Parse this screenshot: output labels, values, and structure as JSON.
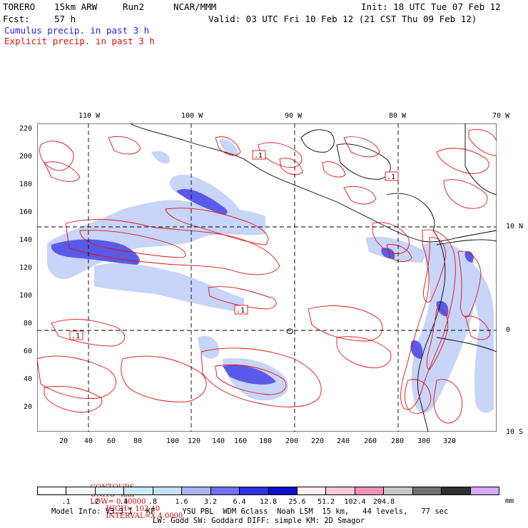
{
  "header": {
    "model_name": "TORERO",
    "resolution": "15km ARW",
    "run": "Run2",
    "org": "NCAR/MMM",
    "init": "Init: 18 UTC Tue 07 Feb 12",
    "fcst_label": "Fcst:",
    "fcst_value": "57 h",
    "valid": "Valid: 03 UTC Fri 10 Feb 12 (21 CST Thu 09 Feb 12)"
  },
  "legend": {
    "cumulus": "Cumulus precip. in past 3 h",
    "explicit": "Explicit precip. in past 3 h"
  },
  "map": {
    "top_lon_labels": [
      "110 W",
      "100 W",
      "90 W",
      "80 W",
      "70 W"
    ],
    "right_lat_labels": [
      "10 N",
      "0",
      "10 S"
    ],
    "left_y_ticks": [
      "220",
      "200",
      "180",
      "160",
      "140",
      "120",
      "100",
      "80",
      "60",
      "40",
      "20"
    ],
    "bottom_x_ticks": [
      "20",
      "40",
      "60",
      "80",
      "100",
      "120",
      "140",
      "160",
      "180",
      "200",
      "220",
      "240",
      "260",
      "280",
      "300",
      "320"
    ],
    "contour_box_labels": [
      ".1",
      ".1",
      ".1",
      ".1"
    ]
  },
  "contours_info": {
    "label": "CONTOURS:",
    "units": "UNITS=mm",
    "low": "LOW= 0.10000",
    "high": "HIGH= 102.40",
    "interval": "INTERVAL=X 4.0000"
  },
  "colorbar": {
    "labels": [
      ".1",
      ".2",
      ".4",
      ".8",
      "1.6",
      "3.2",
      "6.4",
      "12.8",
      "25.6",
      "51.2",
      "102.4",
      "204.8"
    ],
    "unit": "mm",
    "colors": [
      "#ffffff",
      "#f0f8ff",
      "#e0f4ff",
      "#c8ecf4",
      "#c8e0f8",
      "#a8b4f4",
      "#7070f0",
      "#3030e0",
      "#1010c8",
      "#fff0f0",
      "#f8c8d8",
      "#f090b8",
      "#c8c8c8",
      "#707070",
      "#303030",
      "#d8a8f8"
    ]
  },
  "model_info": {
    "line1": "Model Info: V3.3.1   KF      YSU PBL  WDM 6class  Noah LSM  15 km,   44 levels,   77 sec",
    "line2": "LW: Godd SW: Goddard DIFF: simple KM: 2D Smagor"
  }
}
